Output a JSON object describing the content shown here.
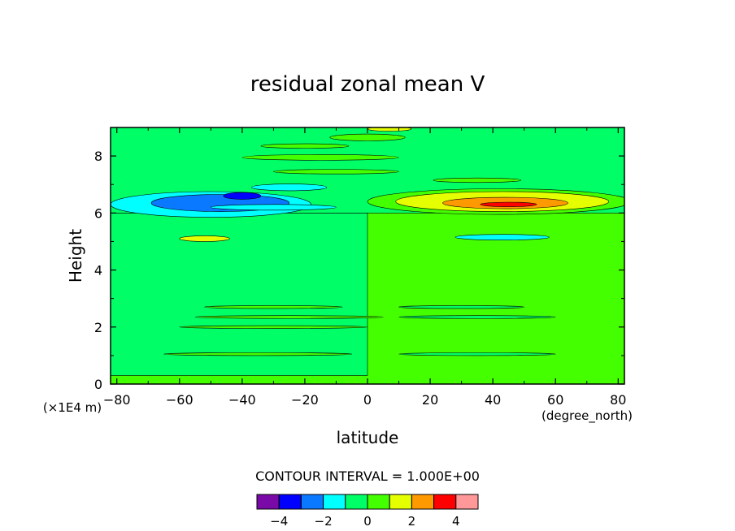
{
  "chart_data": {
    "type": "filled-contour",
    "title": "residual zonal mean V",
    "xlabel": "latitude",
    "xunits": "(degree_north)",
    "ylabel": "Height",
    "yunits": "(×1E4 m)",
    "xlim": [
      -82,
      82
    ],
    "ylim": [
      0,
      9
    ],
    "xticks": [
      -80,
      -60,
      -40,
      -20,
      0,
      20,
      40,
      60,
      80
    ],
    "xtick_labels": [
      "−80",
      "−60",
      "−40",
      "−20",
      "0",
      "20",
      "40",
      "60",
      "80"
    ],
    "yticks": [
      0,
      2,
      4,
      6,
      8
    ],
    "ytick_labels": [
      "0",
      "2",
      "4",
      "6",
      "8"
    ],
    "contour_interval_label": "CONTOUR INTERVAL = 1.000E+00",
    "contour_interval": 1,
    "colorbar": {
      "colors": [
        "#7a0aa8",
        "#0000ff",
        "#0a78ff",
        "#00ffff",
        "#00ff66",
        "#44ff00",
        "#e6ff00",
        "#ff9900",
        "#ff0000",
        "#ff9999"
      ],
      "tick_labels": [
        "−4",
        "−2",
        "0",
        "2",
        "4"
      ]
    },
    "background_color": "#44ff00",
    "regions": [
      {
        "kind": "rect",
        "x0": -82,
        "x1": 0,
        "y0": 0.3,
        "y1": 6.0,
        "color": "#00ff66"
      },
      {
        "kind": "rect",
        "x0": -82,
        "x1": 82,
        "y0": 6.0,
        "y1": 9.0,
        "color": "#00ff66"
      },
      {
        "kind": "ellipse",
        "cx": -50,
        "cy": 6.3,
        "rx": 32,
        "ry": 0.45,
        "color": "#00ffff"
      },
      {
        "kind": "ellipse",
        "cx": -47,
        "cy": 6.35,
        "rx": 22,
        "ry": 0.3,
        "color": "#0a78ff"
      },
      {
        "kind": "ellipse",
        "cx": -40,
        "cy": 6.6,
        "rx": 6,
        "ry": 0.12,
        "color": "#0000ff"
      },
      {
        "kind": "ellipse",
        "cx": -30,
        "cy": 6.2,
        "rx": 20,
        "ry": 0.1,
        "color": "#00ffff"
      },
      {
        "kind": "ellipse",
        "cx": -25,
        "cy": 6.9,
        "rx": 12,
        "ry": 0.12,
        "color": "#00ffff"
      },
      {
        "kind": "ellipse",
        "cx": 42,
        "cy": 6.4,
        "rx": 42,
        "ry": 0.45,
        "color": "#44ff00"
      },
      {
        "kind": "ellipse",
        "cx": 43,
        "cy": 6.4,
        "rx": 34,
        "ry": 0.35,
        "color": "#e6ff00"
      },
      {
        "kind": "ellipse",
        "cx": 44,
        "cy": 6.35,
        "rx": 20,
        "ry": 0.2,
        "color": "#ff9900"
      },
      {
        "kind": "ellipse",
        "cx": 45,
        "cy": 6.3,
        "rx": 9,
        "ry": 0.08,
        "color": "#ff0000"
      },
      {
        "kind": "ellipse",
        "cx": 43,
        "cy": 5.15,
        "rx": 15,
        "ry": 0.1,
        "color": "#00ffff"
      },
      {
        "kind": "ellipse",
        "cx": -52,
        "cy": 5.1,
        "rx": 8,
        "ry": 0.1,
        "color": "#e6ff00"
      },
      {
        "kind": "ellipse",
        "cx": 0,
        "cy": 8.65,
        "rx": 12,
        "ry": 0.12,
        "color": "#44ff00"
      },
      {
        "kind": "ellipse",
        "cx": 7,
        "cy": 8.95,
        "rx": 7,
        "ry": 0.08,
        "color": "#e6ff00"
      },
      {
        "kind": "ellipse",
        "cx": -20,
        "cy": 8.35,
        "rx": 14,
        "ry": 0.08,
        "color": "#44ff00"
      },
      {
        "kind": "ellipse",
        "cx": -15,
        "cy": 7.95,
        "rx": 25,
        "ry": 0.1,
        "color": "#44ff00"
      },
      {
        "kind": "ellipse",
        "cx": -10,
        "cy": 7.45,
        "rx": 20,
        "ry": 0.08,
        "color": "#44ff00"
      },
      {
        "kind": "ellipse",
        "cx": 35,
        "cy": 7.15,
        "rx": 14,
        "ry": 0.08,
        "color": "#44ff00"
      },
      {
        "kind": "ellipse",
        "cx": -30,
        "cy": 2.7,
        "rx": 22,
        "ry": 0.05,
        "color": "#44ff00"
      },
      {
        "kind": "ellipse",
        "cx": -25,
        "cy": 2.35,
        "rx": 30,
        "ry": 0.05,
        "color": "#44ff00"
      },
      {
        "kind": "ellipse",
        "cx": -30,
        "cy": 2.0,
        "rx": 30,
        "ry": 0.05,
        "color": "#44ff00"
      },
      {
        "kind": "ellipse",
        "cx": -35,
        "cy": 1.05,
        "rx": 30,
        "ry": 0.05,
        "color": "#44ff00"
      },
      {
        "kind": "ellipse",
        "cx": 35,
        "cy": 2.35,
        "rx": 25,
        "ry": 0.05,
        "color": "#00ff66"
      },
      {
        "kind": "ellipse",
        "cx": 30,
        "cy": 2.7,
        "rx": 20,
        "ry": 0.05,
        "color": "#00ff66"
      },
      {
        "kind": "ellipse",
        "cx": 35,
        "cy": 1.05,
        "rx": 25,
        "ry": 0.05,
        "color": "#00ff66"
      }
    ]
  }
}
